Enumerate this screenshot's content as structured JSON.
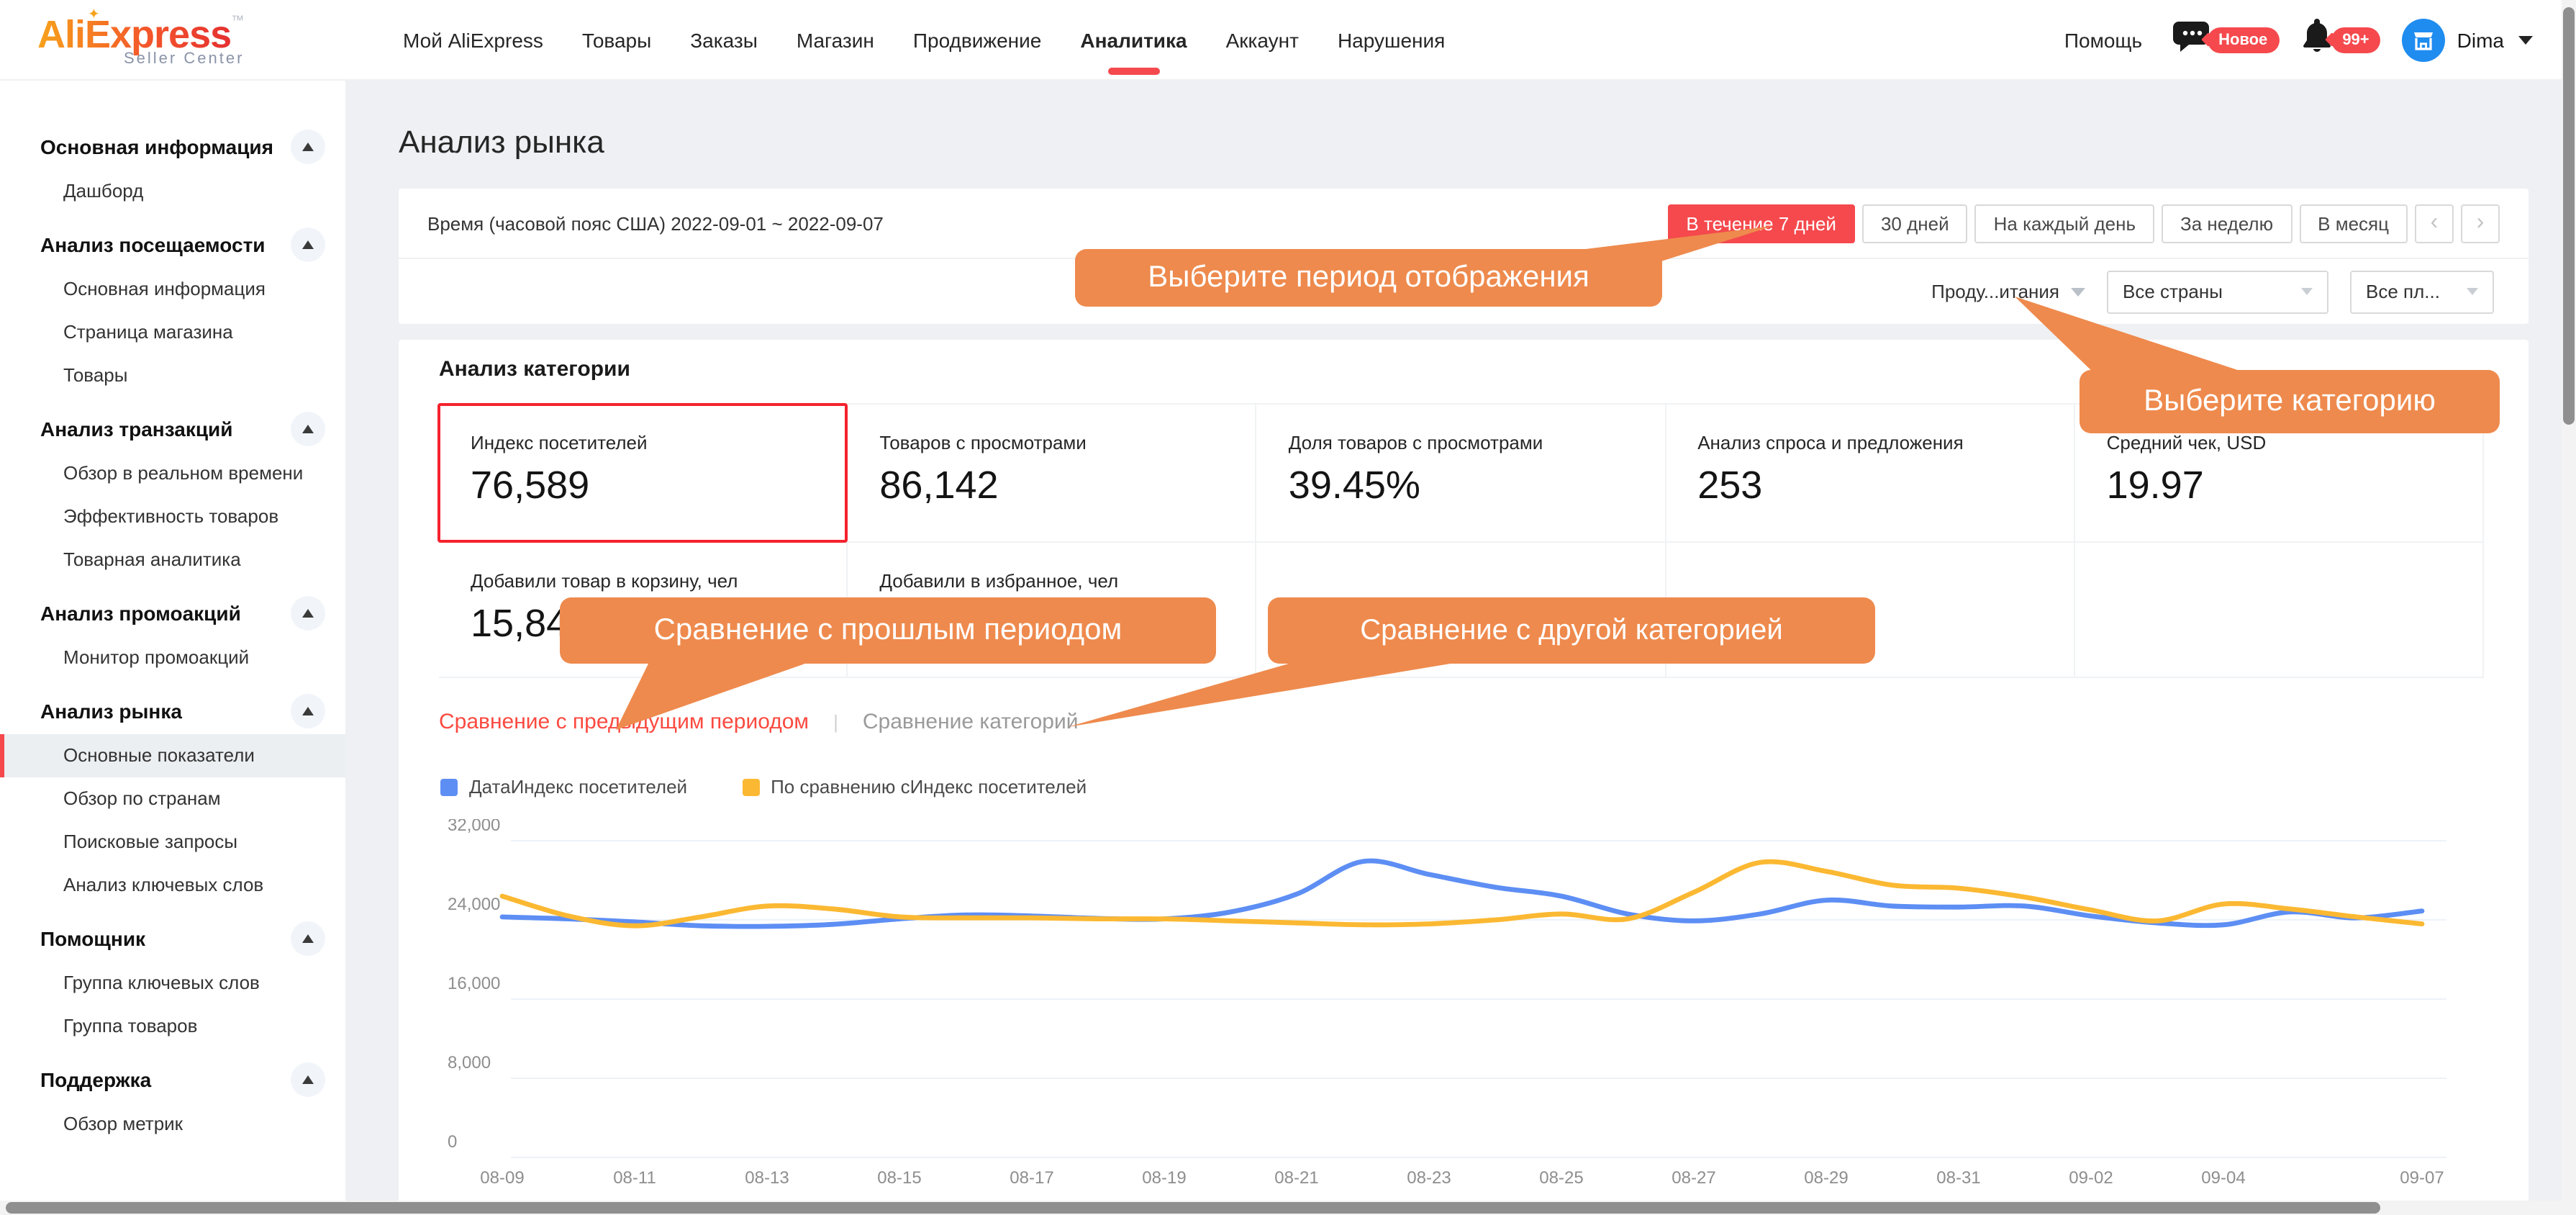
{
  "nav": {
    "logo": {
      "brand": "AliExpress",
      "tm": "™",
      "sub": "Seller Center"
    },
    "items": [
      {
        "label": "Мой AliExpress",
        "active": false
      },
      {
        "label": "Товары",
        "active": false
      },
      {
        "label": "Заказы",
        "active": false
      },
      {
        "label": "Магазин",
        "active": false
      },
      {
        "label": "Продвижение",
        "active": false
      },
      {
        "label": "Аналитика",
        "active": true
      },
      {
        "label": "Аккаунт",
        "active": false
      },
      {
        "label": "Нарушения",
        "active": false
      }
    ],
    "help_label": "Помощь",
    "chat_badge": "Новое",
    "notification_badge": "99+",
    "user_name": "Dima"
  },
  "sidebar": {
    "sections": [
      {
        "title": "Основная информация",
        "items": [
          {
            "label": "Дашборд",
            "selected": false
          }
        ]
      },
      {
        "title": "Анализ посещаемости",
        "items": [
          {
            "label": "Основная информация",
            "selected": false
          },
          {
            "label": "Страница магазина",
            "selected": false
          },
          {
            "label": "Товары",
            "selected": false
          }
        ]
      },
      {
        "title": "Анализ транзакций",
        "items": [
          {
            "label": "Обзор в реальном времени",
            "selected": false
          },
          {
            "label": "Эффективность товаров",
            "selected": false
          },
          {
            "label": "Товарная аналитика",
            "selected": false
          }
        ]
      },
      {
        "title": "Анализ промоакций",
        "items": [
          {
            "label": "Монитор промоакций",
            "selected": false
          }
        ]
      },
      {
        "title": "Анализ рынка",
        "items": [
          {
            "label": "Основные показатели",
            "selected": true
          },
          {
            "label": "Обзор по странам",
            "selected": false
          },
          {
            "label": "Поисковые запросы",
            "selected": false
          },
          {
            "label": "Анализ ключевых слов",
            "selected": false
          }
        ]
      },
      {
        "title": "Помощник",
        "items": [
          {
            "label": "Группа ключевых слов",
            "selected": false
          },
          {
            "label": "Группа товаров",
            "selected": false
          }
        ]
      },
      {
        "title": "Поддержка",
        "items": [
          {
            "label": "Обзор метрик",
            "selected": false
          }
        ]
      }
    ]
  },
  "page": {
    "title": "Анализ рынка",
    "time_label": "Время (часовой пояс США) 2022-09-01 ~ 2022-09-07",
    "period_buttons": [
      {
        "label": "В течение 7 дней",
        "active": true
      },
      {
        "label": "30 дней",
        "active": false
      },
      {
        "label": "На каждый день",
        "active": false
      },
      {
        "label": "За неделю",
        "active": false
      },
      {
        "label": "В месяц",
        "active": false
      }
    ],
    "pager_prev": "‹",
    "pager_next": "›",
    "filters": {
      "category": "Проду...итания",
      "country": "Все страны",
      "platform": "Все пл..."
    }
  },
  "section": {
    "heading": "Анализ категории",
    "metrics_row1": [
      {
        "label": "Индекс посетителей",
        "value": "76,589",
        "highlighted": true
      },
      {
        "label": "Товаров с просмотрами",
        "value": "86,142",
        "highlighted": false
      },
      {
        "label": "Доля товаров с просмотрами",
        "value": "39.45%",
        "highlighted": false
      },
      {
        "label": "Анализ спроса и предложения",
        "value": "253",
        "highlighted": false
      },
      {
        "label": "Средний чек, USD",
        "value": "19.97",
        "highlighted": false
      }
    ],
    "metrics_row2": [
      {
        "label": "Добавили товар в корзину, чел",
        "value": "15,848",
        "highlighted": false
      },
      {
        "label": "Добавили в избранное, чел",
        "value": "",
        "highlighted": false
      }
    ],
    "compare_links": {
      "active": "Сравнение с предыдущим периодом",
      "separator": "|",
      "inactive": "Сравнение категорий"
    }
  },
  "annotations": [
    "Выберите период отображения",
    "Выберите категорию",
    "Сравнение с прошлым периодом",
    "Сравнение с другой категорией"
  ],
  "icons": {
    "chat": "chat-bubble-icon",
    "bell": "bell-icon",
    "avatar": "store-icon",
    "collapse": "chevron-up-icon",
    "dropdown": "chevron-down-icon"
  },
  "colors": {
    "accent_red": "#f5494d",
    "annotation_orange": "#ee8a4d",
    "highlight_border": "#f5222d",
    "avatar_blue": "#1f8cf0",
    "page_background": "#eef0f3"
  },
  "chart_data": {
    "type": "line",
    "title": "",
    "xlabel": "",
    "ylabel": "",
    "x": [
      "08-09",
      "08-10",
      "08-11",
      "08-12",
      "08-13",
      "08-14",
      "08-15",
      "08-16",
      "08-17",
      "08-18",
      "08-19",
      "08-20",
      "08-21",
      "08-22",
      "08-23",
      "08-24",
      "08-25",
      "08-26",
      "08-27",
      "08-28",
      "08-29",
      "08-30",
      "08-31",
      "09-01",
      "09-02",
      "09-03",
      "09-04",
      "09-05",
      "09-06",
      "09-07"
    ],
    "x_tick_indices": [
      0,
      2,
      4,
      6,
      8,
      10,
      12,
      14,
      16,
      18,
      20,
      22,
      24,
      26,
      29
    ],
    "ylim": [
      0,
      32000
    ],
    "yticks": [
      {
        "value": 0,
        "label": "0"
      },
      {
        "value": 8000,
        "label": "8,000"
      },
      {
        "value": 16000,
        "label": "16,000"
      },
      {
        "value": 24000,
        "label": "24,000"
      },
      {
        "value": 32000,
        "label": "32,000"
      }
    ],
    "grid": true,
    "legend_position": "top-left",
    "series": [
      {
        "name": "ДатаИндекс посетителей",
        "color": "#5d8ef4",
        "values": [
          24300,
          24100,
          23800,
          23400,
          23350,
          23550,
          24100,
          24500,
          24400,
          24150,
          24100,
          24800,
          26600,
          29900,
          28600,
          27300,
          26400,
          24600,
          23900,
          24600,
          26000,
          25400,
          25300,
          25400,
          24400,
          23700,
          23500,
          24800,
          24200,
          24900
        ]
      },
      {
        "name": "По сравнению сИндекс посетителей",
        "color": "#fbb832",
        "values": [
          26400,
          24400,
          23400,
          24300,
          25400,
          25100,
          24300,
          24200,
          24200,
          24100,
          24100,
          23900,
          23700,
          23500,
          23600,
          24000,
          24600,
          24100,
          26800,
          29800,
          28900,
          27500,
          27200,
          26300,
          25000,
          23900,
          25600,
          25100,
          24300,
          23600
        ]
      }
    ]
  }
}
